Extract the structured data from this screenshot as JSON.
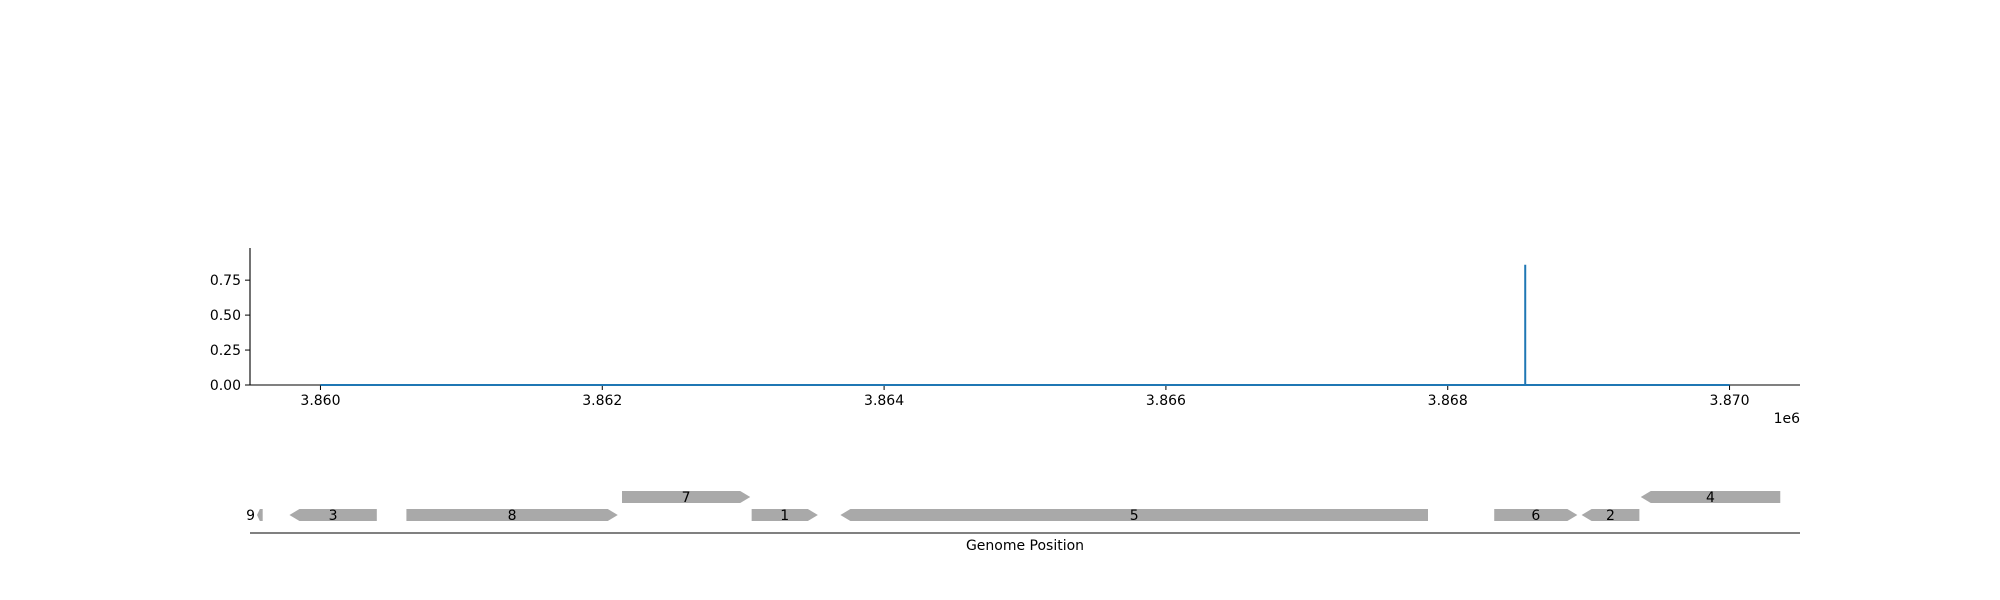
{
  "chart_data": [
    {
      "type": "line",
      "title": "",
      "xlabel": "",
      "ylabel": "",
      "x_offset_label": "1e6",
      "xlim": [
        3.8595,
        3.8705
      ],
      "ylim": [
        0,
        0.98
      ],
      "x_ticks": [
        3.86,
        3.862,
        3.864,
        3.866,
        3.868,
        3.87
      ],
      "x_tick_labels": [
        "3.860",
        "3.862",
        "3.864",
        "3.866",
        "3.868",
        "3.870"
      ],
      "y_ticks": [
        0,
        0.25,
        0.5,
        0.75
      ],
      "y_tick_labels": [
        "0.00",
        "0.25",
        "0.50",
        "0.75"
      ],
      "grid": false,
      "legend": "none",
      "series": [
        {
          "color": "#1f77b4",
          "x": [
            3.86,
            3.86855,
            3.86855,
            3.86855,
            3.87
          ],
          "y": [
            0,
            0,
            0.86,
            0,
            0
          ]
        }
      ]
    },
    {
      "type": "gene_track",
      "xlabel": "Genome Position",
      "xlim": [
        3.8595,
        3.8705
      ],
      "feature_color": "#a9a9a9",
      "genes": [
        {
          "label": "9",
          "start": 3.85955,
          "end": 3.85959,
          "strand": "-",
          "row": 0
        },
        {
          "label": "3",
          "start": 3.85978,
          "end": 3.8604,
          "strand": "-",
          "row": 0
        },
        {
          "label": "8",
          "start": 3.86061,
          "end": 3.86211,
          "strand": "+",
          "row": 0
        },
        {
          "label": "7",
          "start": 3.86214,
          "end": 3.86305,
          "strand": "+",
          "row": 1
        },
        {
          "label": "1",
          "start": 3.86306,
          "end": 3.86353,
          "strand": "+",
          "row": 0
        },
        {
          "label": "5",
          "start": 3.86369,
          "end": 3.86786,
          "strand": "-",
          "row": 0
        },
        {
          "label": "6",
          "start": 3.86833,
          "end": 3.86892,
          "strand": "+",
          "row": 0
        },
        {
          "label": "2",
          "start": 3.86895,
          "end": 3.86936,
          "strand": "-",
          "row": 0
        },
        {
          "label": "4",
          "start": 3.86937,
          "end": 3.87036,
          "strand": "-",
          "row": 1
        }
      ]
    }
  ]
}
